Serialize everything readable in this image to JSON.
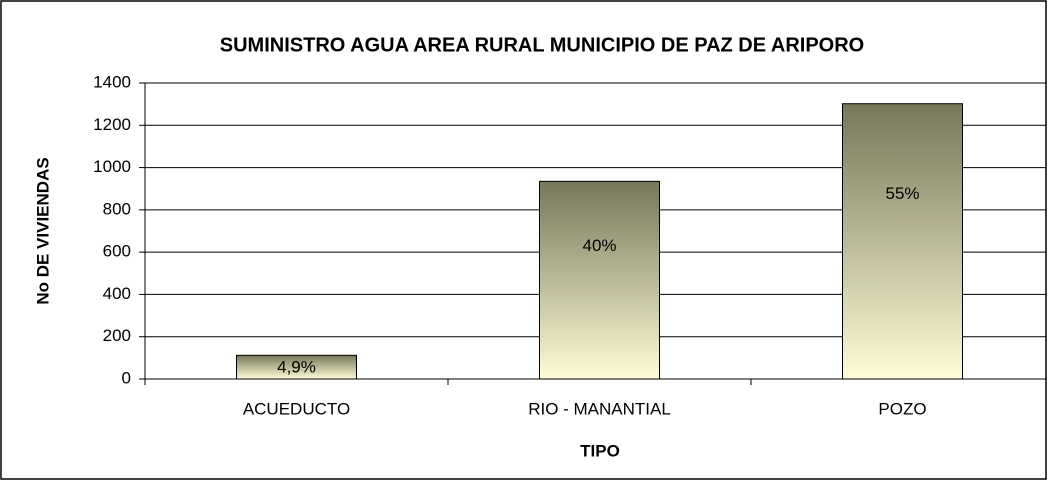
{
  "chart_data": {
    "type": "bar",
    "title": "SUMINISTRO AGUA AREA RURAL MUNICIPIO DE PAZ DE ARIPORO",
    "x_label": "TIPO",
    "y_label": "No DE VIVIENDAS",
    "categories": [
      "ACUEDUCTO",
      "RIO - MANANTIAL",
      "POZO"
    ],
    "values": [
      112,
      935,
      1302
    ],
    "annotations": [
      "4,9%",
      "40%",
      "55%"
    ],
    "color_top": "#77775a",
    "color_bottom": "#fffdd6",
    "ylim": [
      0,
      1400
    ],
    "yticks": [
      0,
      200,
      400,
      600,
      800,
      1000,
      1200,
      1400
    ],
    "grid": true
  }
}
